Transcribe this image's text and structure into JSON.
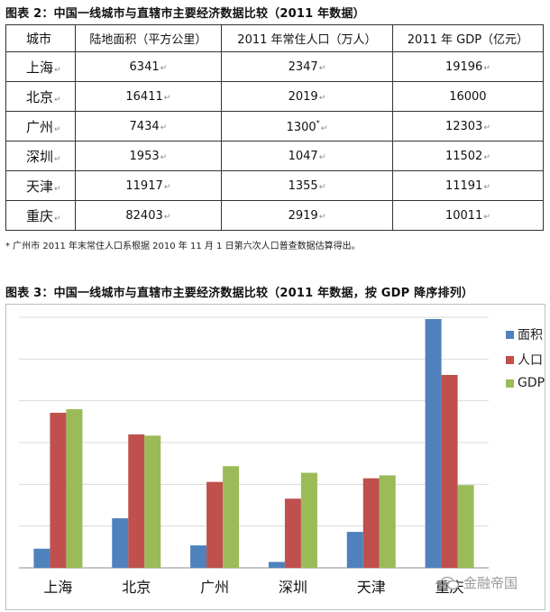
{
  "table_caption": "图表 2：中国一线城市与直辖市主要经济数据比较（2011 年数据）",
  "table": {
    "headers": [
      "城市",
      "陆地面积（平方公里）",
      "2011 年常住人口（万人）",
      "2011 年 GDP（亿元）"
    ],
    "rows": [
      {
        "city": "上海",
        "area": "6341",
        "pop": "2347",
        "gdp": "19196"
      },
      {
        "city": "北京",
        "area": "16411",
        "pop": "2019",
        "gdp": "16000"
      },
      {
        "city": "广州",
        "area": "7434",
        "pop": "1300",
        "gdp": "12303"
      },
      {
        "city": "深圳",
        "area": "1953",
        "pop": "1047",
        "gdp": "11502"
      },
      {
        "city": "天津",
        "area": "11917",
        "pop": "1355",
        "gdp": "11191"
      },
      {
        "city": "重庆",
        "area": "82403",
        "pop": "2919",
        "gdp": "10011"
      }
    ],
    "asterisk": "*",
    "return_mark": "↵"
  },
  "footnote": "* 广州市 2011 年末常住人口系根据 2010 年 11 月 1 日第六次人口普查数据估算得出。",
  "chart_caption": "图表 3：中国一线城市与直辖市主要经济数据比较（2011 年数据，按 GDP 降序排列）",
  "chart_data": {
    "type": "bar",
    "categories": [
      "上海",
      "北京",
      "广州",
      "深圳",
      "天津",
      "重庆"
    ],
    "series": [
      {
        "name": "面积",
        "values": [
          6341,
          16411,
          7434,
          1953,
          11917,
          82403
        ],
        "color": "#4F81BD"
      },
      {
        "name": "人口",
        "values": [
          2347,
          2019,
          1300,
          1047,
          1355,
          2919
        ],
        "color": "#C0504D"
      },
      {
        "name": "GDP",
        "values": [
          19196,
          16000,
          12303,
          11502,
          11191,
          10011
        ],
        "color": "#9BBB59"
      }
    ],
    "grid": true,
    "legend": "right"
  },
  "watermark": "金融帝国"
}
